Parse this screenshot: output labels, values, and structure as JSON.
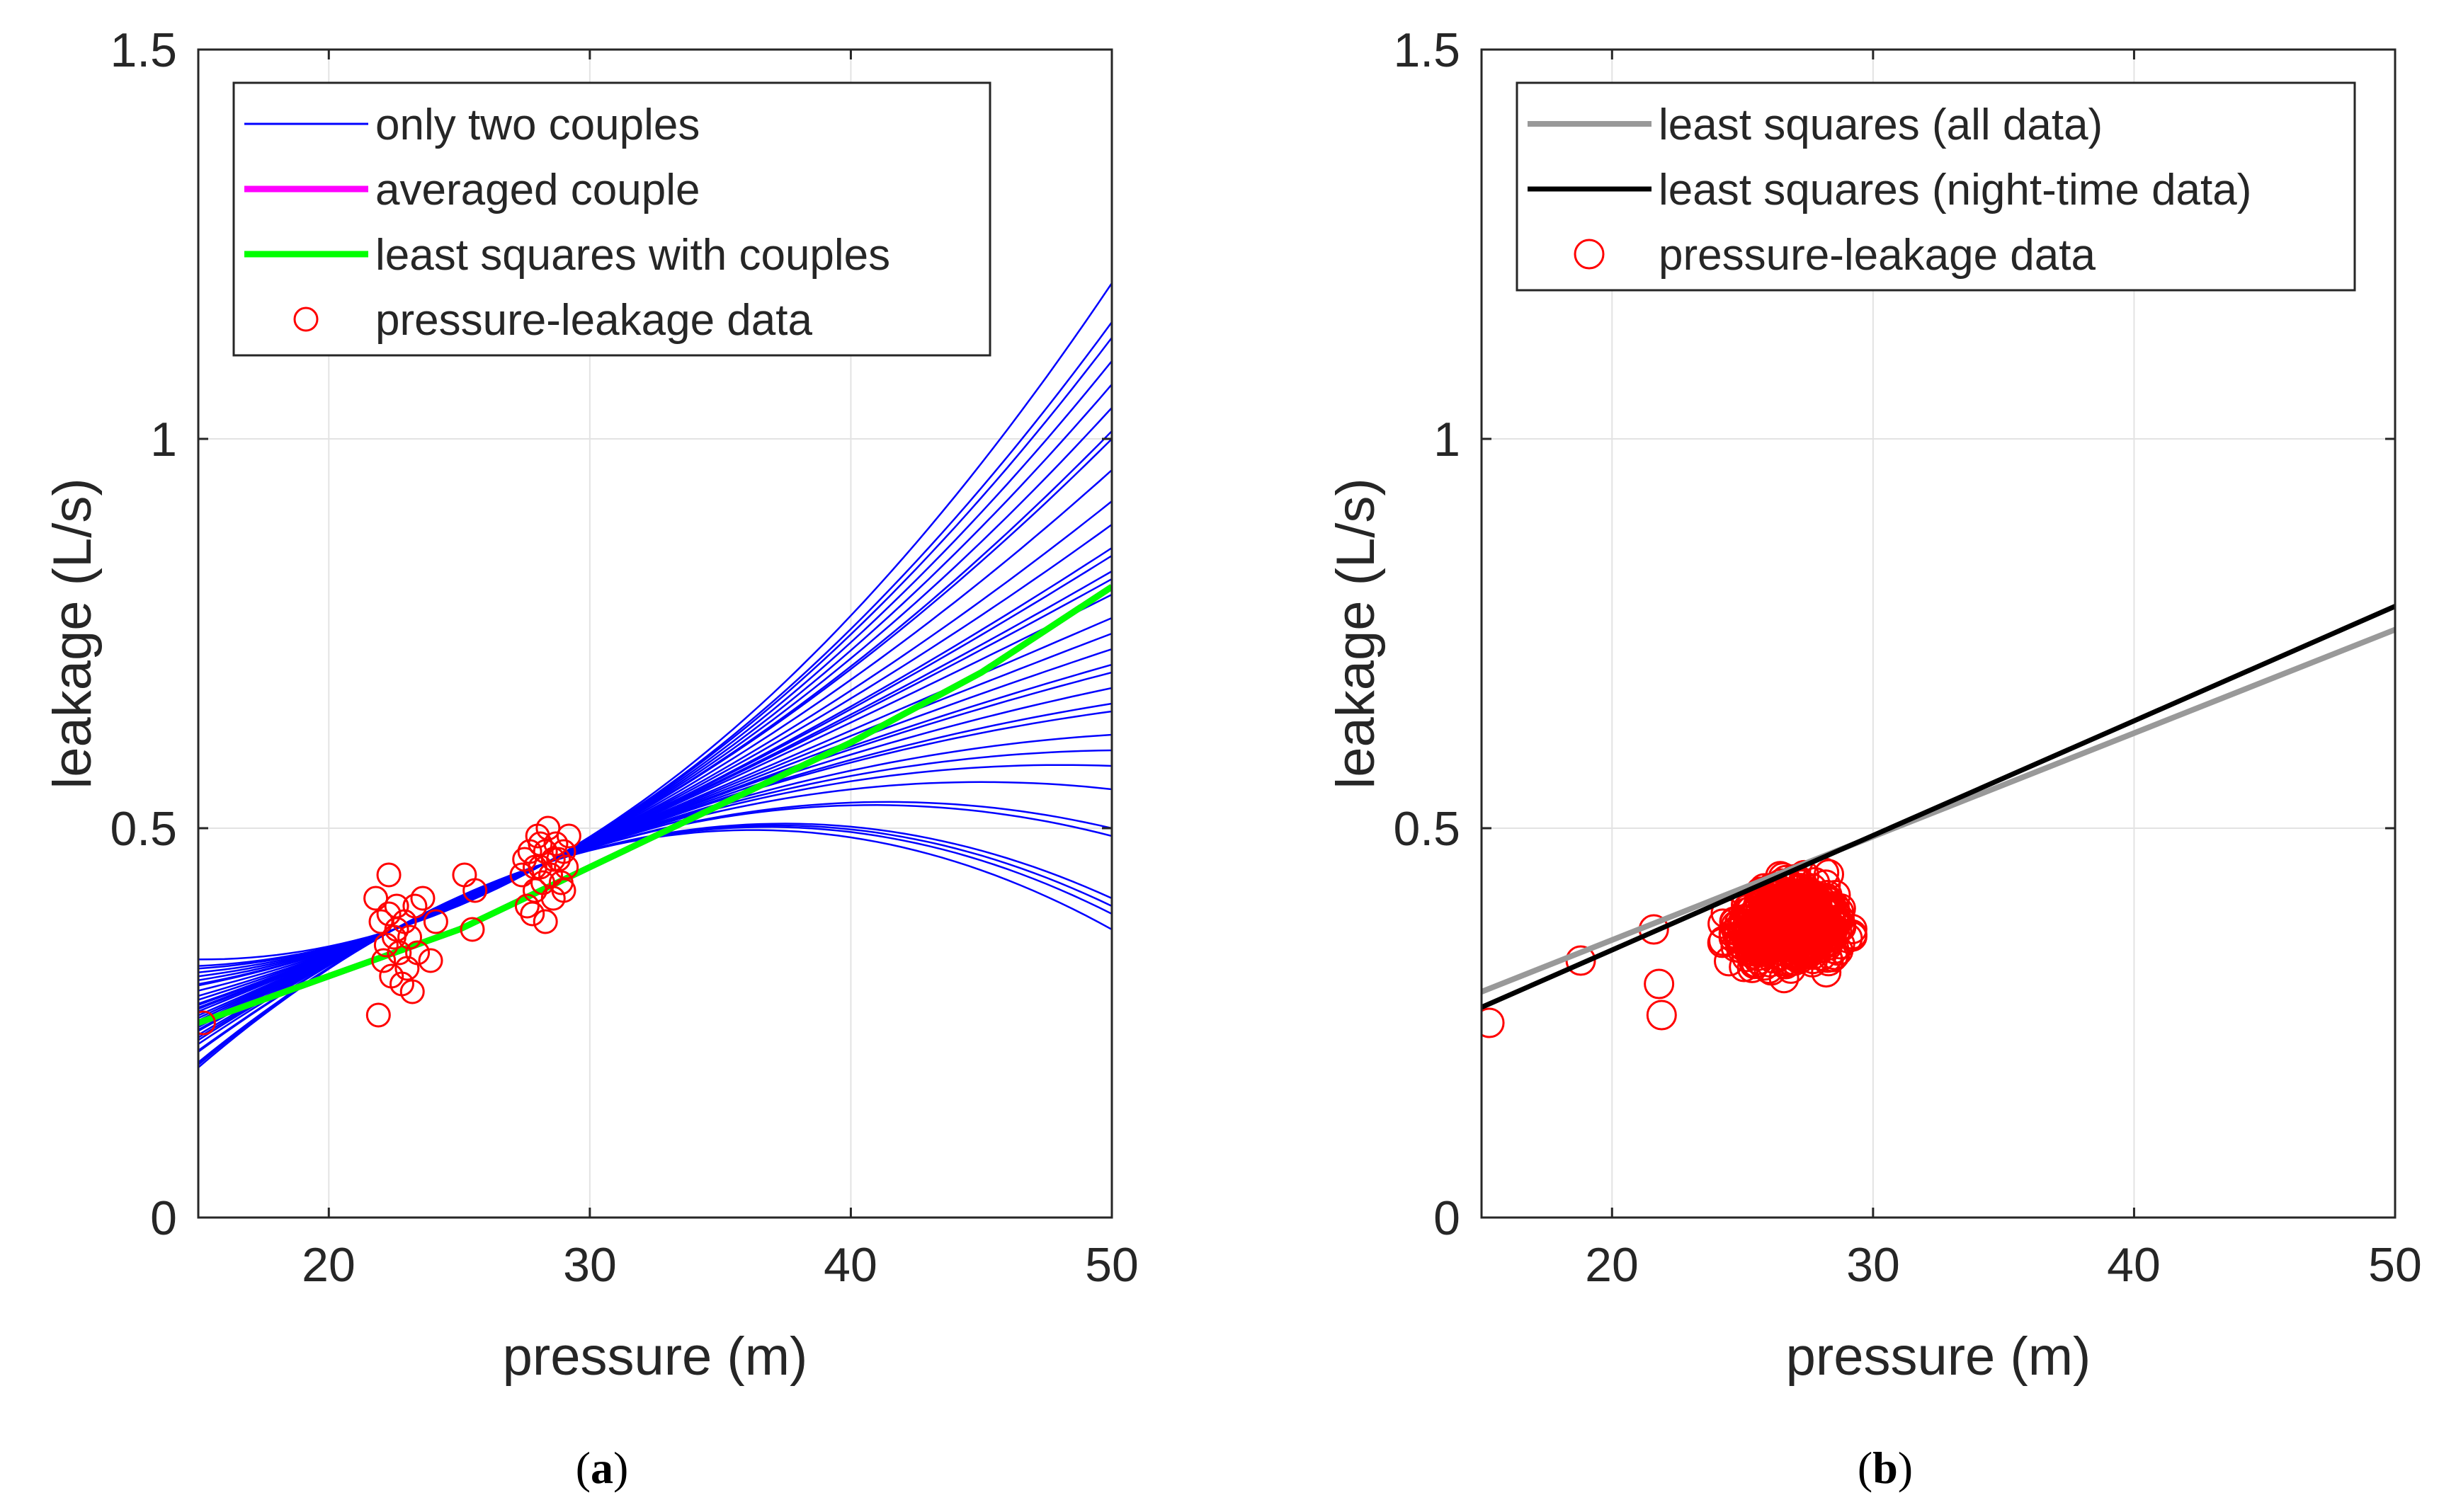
{
  "chart_data": [
    {
      "panel": "a",
      "type": "line",
      "caption": "a",
      "xlabel": "pressure (m)",
      "ylabel": "leakage (L/s)",
      "xlim": [
        15,
        50
      ],
      "ylim": [
        0,
        1.5
      ],
      "xticks": [
        "20",
        "30",
        "40",
        "50"
      ],
      "yticks": [
        "0",
        "0.5",
        "1",
        "1.5"
      ],
      "grid": true,
      "legend_placement": "top-left",
      "colors": {
        "couples": "#0000ff",
        "averaged": "#ff00ff",
        "least_squares": "#00ff00",
        "data": "#ff0000"
      },
      "legend": [
        {
          "label": "only two couples",
          "style": "line",
          "color": "#0000ff"
        },
        {
          "label": "averaged couple",
          "style": "line",
          "color": "#ff00ff"
        },
        {
          "label": "least squares with couples",
          "style": "line",
          "color": "#00ff00"
        },
        {
          "label": "pressure-leakage data",
          "style": "marker",
          "color": "#ff0000"
        }
      ],
      "series": [
        {
          "name": "only two couples",
          "kind": "curve-family",
          "anchor_points": [
            [
              22.5,
              0.37
            ],
            [
              28.3,
              0.455
            ]
          ],
          "values_at_x50": [
            0.37,
            0.39,
            0.4,
            0.41,
            0.49,
            0.5,
            0.55,
            0.58,
            0.6,
            0.62,
            0.65,
            0.66,
            0.68,
            0.7,
            0.71,
            0.73,
            0.75,
            0.77,
            0.8,
            0.82,
            0.83,
            0.85,
            0.86,
            0.89,
            0.92,
            0.96,
            1.0,
            1.01,
            1.04,
            1.07,
            1.1,
            1.13,
            1.15,
            1.2
          ]
        },
        {
          "name": "averaged couple",
          "x": [
            15,
            20,
            25,
            30,
            35,
            40,
            45,
            50
          ],
          "y": [
            0.25,
            0.31,
            0.37,
            0.45,
            0.53,
            0.61,
            0.7,
            0.81
          ]
        },
        {
          "name": "least squares with couples",
          "x": [
            15,
            20,
            25,
            30,
            35,
            40,
            45,
            50
          ],
          "y": [
            0.25,
            0.31,
            0.37,
            0.45,
            0.53,
            0.61,
            0.7,
            0.81
          ]
        },
        {
          "name": "pressure-leakage data",
          "kind": "scatter",
          "points": [
            [
              15.2,
              0.25
            ],
            [
              21.8,
              0.41
            ],
            [
              21.9,
              0.26
            ],
            [
              22.0,
              0.38
            ],
            [
              22.1,
              0.33
            ],
            [
              22.2,
              0.35
            ],
            [
              22.3,
              0.44
            ],
            [
              22.3,
              0.39
            ],
            [
              22.4,
              0.31
            ],
            [
              22.5,
              0.36
            ],
            [
              22.6,
              0.37
            ],
            [
              22.6,
              0.4
            ],
            [
              22.7,
              0.34
            ],
            [
              22.8,
              0.3
            ],
            [
              22.9,
              0.38
            ],
            [
              23.0,
              0.32
            ],
            [
              23.1,
              0.36
            ],
            [
              23.2,
              0.29
            ],
            [
              23.3,
              0.4
            ],
            [
              23.4,
              0.34
            ],
            [
              23.6,
              0.41
            ],
            [
              23.9,
              0.33
            ],
            [
              24.1,
              0.38
            ],
            [
              25.2,
              0.44
            ],
            [
              25.5,
              0.37
            ],
            [
              25.6,
              0.42
            ],
            [
              27.4,
              0.44
            ],
            [
              27.6,
              0.4
            ],
            [
              27.7,
              0.47
            ],
            [
              27.8,
              0.39
            ],
            [
              27.9,
              0.42
            ],
            [
              28.0,
              0.49
            ],
            [
              28.1,
              0.45
            ],
            [
              28.2,
              0.43
            ],
            [
              28.3,
              0.38
            ],
            [
              28.3,
              0.47
            ],
            [
              28.4,
              0.5
            ],
            [
              28.5,
              0.44
            ],
            [
              28.6,
              0.41
            ],
            [
              28.7,
              0.48
            ],
            [
              28.8,
              0.46
            ],
            [
              28.9,
              0.43
            ],
            [
              29.0,
              0.47
            ],
            [
              29.1,
              0.45
            ],
            [
              29.2,
              0.49
            ],
            [
              27.5,
              0.46
            ],
            [
              28.1,
              0.48
            ],
            [
              28.6,
              0.46
            ],
            [
              29.0,
              0.42
            ],
            [
              27.9,
              0.45
            ]
          ]
        }
      ]
    },
    {
      "panel": "b",
      "type": "line",
      "caption": "b",
      "xlabel": "pressure (m)",
      "ylabel": "leakage (L/s)",
      "xlim": [
        15,
        50
      ],
      "ylim": [
        0,
        1.5
      ],
      "xticks": [
        "20",
        "30",
        "40",
        "50"
      ],
      "yticks": [
        "0",
        "0.5",
        "1",
        "1.5"
      ],
      "grid": true,
      "legend_placement": "top-left",
      "colors": {
        "all_data": "#999999",
        "night_time": "#000000",
        "data": "#ff0000"
      },
      "legend": [
        {
          "label": "least squares (all data)",
          "style": "line",
          "color": "#999999"
        },
        {
          "label": "least squares (night-time data)",
          "style": "line",
          "color": "#000000"
        },
        {
          "label": "pressure-leakage data",
          "style": "marker",
          "color": "#ff0000"
        }
      ],
      "series": [
        {
          "name": "least squares (all data)",
          "x": [
            15,
            50
          ],
          "y": [
            0.29,
            0.755
          ]
        },
        {
          "name": "least squares (night-time data)",
          "x": [
            15,
            50
          ],
          "y": [
            0.27,
            0.785
          ]
        },
        {
          "name": "pressure-leakage data",
          "kind": "scatter-cloud",
          "outliers": [
            [
              15.3,
              0.25
            ],
            [
              18.8,
              0.33
            ],
            [
              21.6,
              0.37
            ],
            [
              21.9,
              0.26
            ],
            [
              21.8,
              0.3
            ]
          ],
          "cloud": {
            "x_range": [
              22.0,
              29.2
            ],
            "center": [
              26.8,
              0.45
            ],
            "y_spread": [
              0.29,
              0.57
            ]
          }
        }
      ]
    }
  ]
}
